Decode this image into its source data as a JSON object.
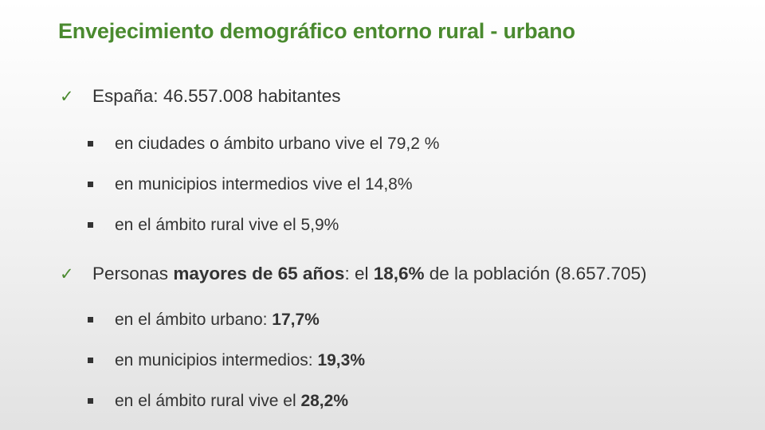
{
  "slide": {
    "title": "Envejecimiento demográfico entorno rural - urbano",
    "section1": {
      "prefix": "España: 46.557.008 habitantes",
      "items": [
        {
          "text": "en ciudades o ámbito urbano vive el 79,2 %"
        },
        {
          "text": "en municipios intermedios vive el 14,8%"
        },
        {
          "text": "en el ámbito rural vive el 5,9%"
        }
      ]
    },
    "section2": {
      "part1": "Personas ",
      "bold1": "mayores de 65 años",
      "part2": ": el ",
      "bold2": "18,6%",
      "part3": " de la población (8.657.705)",
      "items": [
        {
          "prefix": "en el ámbito urbano: ",
          "value": "17,7%"
        },
        {
          "prefix": "en municipios intermedios: ",
          "value": "19,3%"
        },
        {
          "prefix": "en el ámbito rural vive el ",
          "value": "28,2%"
        }
      ]
    }
  }
}
